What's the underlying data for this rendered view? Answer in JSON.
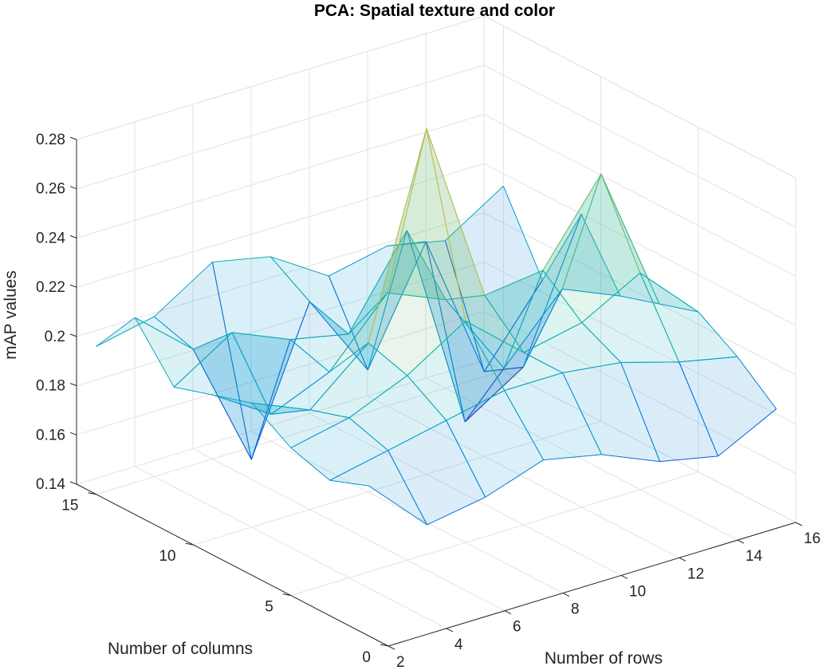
{
  "chart_data": {
    "type": "surface",
    "title": "PCA: Spatial texture and color",
    "xlabel": "Number of rows",
    "ylabel": "Number of columns",
    "zlabel": "mAP values",
    "xlim": [
      2,
      16
    ],
    "ylim": [
      0,
      16
    ],
    "zlim": [
      0.14,
      0.28
    ],
    "xticks": [
      "2",
      "4",
      "6",
      "8",
      "10",
      "12",
      "14",
      "16"
    ],
    "yticks": [
      "0",
      "5",
      "10",
      "15"
    ],
    "zticks": [
      "0.14",
      "0.16",
      "0.18",
      "0.2",
      "0.22",
      "0.24",
      "0.26",
      "0.28"
    ],
    "grid": true,
    "surface_alpha": 0.15,
    "colormap": "parula",
    "x": [
      2,
      4,
      6,
      8,
      10,
      12,
      14,
      16
    ],
    "y": [
      1,
      3,
      5,
      7,
      9,
      11,
      13,
      15
    ],
    "z": [
      [
        0.201,
        0.178,
        0.182,
        0.19,
        0.185,
        0.175,
        0.17,
        0.182
      ],
      [
        0.195,
        0.2,
        0.205,
        0.21,
        0.21,
        0.207,
        0.2,
        0.195
      ],
      [
        0.2,
        0.205,
        0.215,
        0.23,
        0.21,
        0.215,
        0.228,
        0.205
      ],
      [
        0.21,
        0.2,
        0.22,
        0.3,
        0.225,
        0.228,
        0.26,
        0.2
      ],
      [
        0.205,
        0.19,
        0.2,
        0.225,
        0.215,
        0.18,
        0.205,
        0.195
      ],
      [
        0.2,
        0.215,
        0.205,
        0.2,
        0.235,
        0.15,
        0.165,
        0.22
      ],
      [
        0.22,
        0.2,
        0.148,
        0.205,
        0.17,
        0.215,
        0.155,
        0.185
      ],
      [
        0.2,
        0.205,
        0.22,
        0.215,
        0.2,
        0.205,
        0.2,
        0.215
      ]
    ]
  }
}
